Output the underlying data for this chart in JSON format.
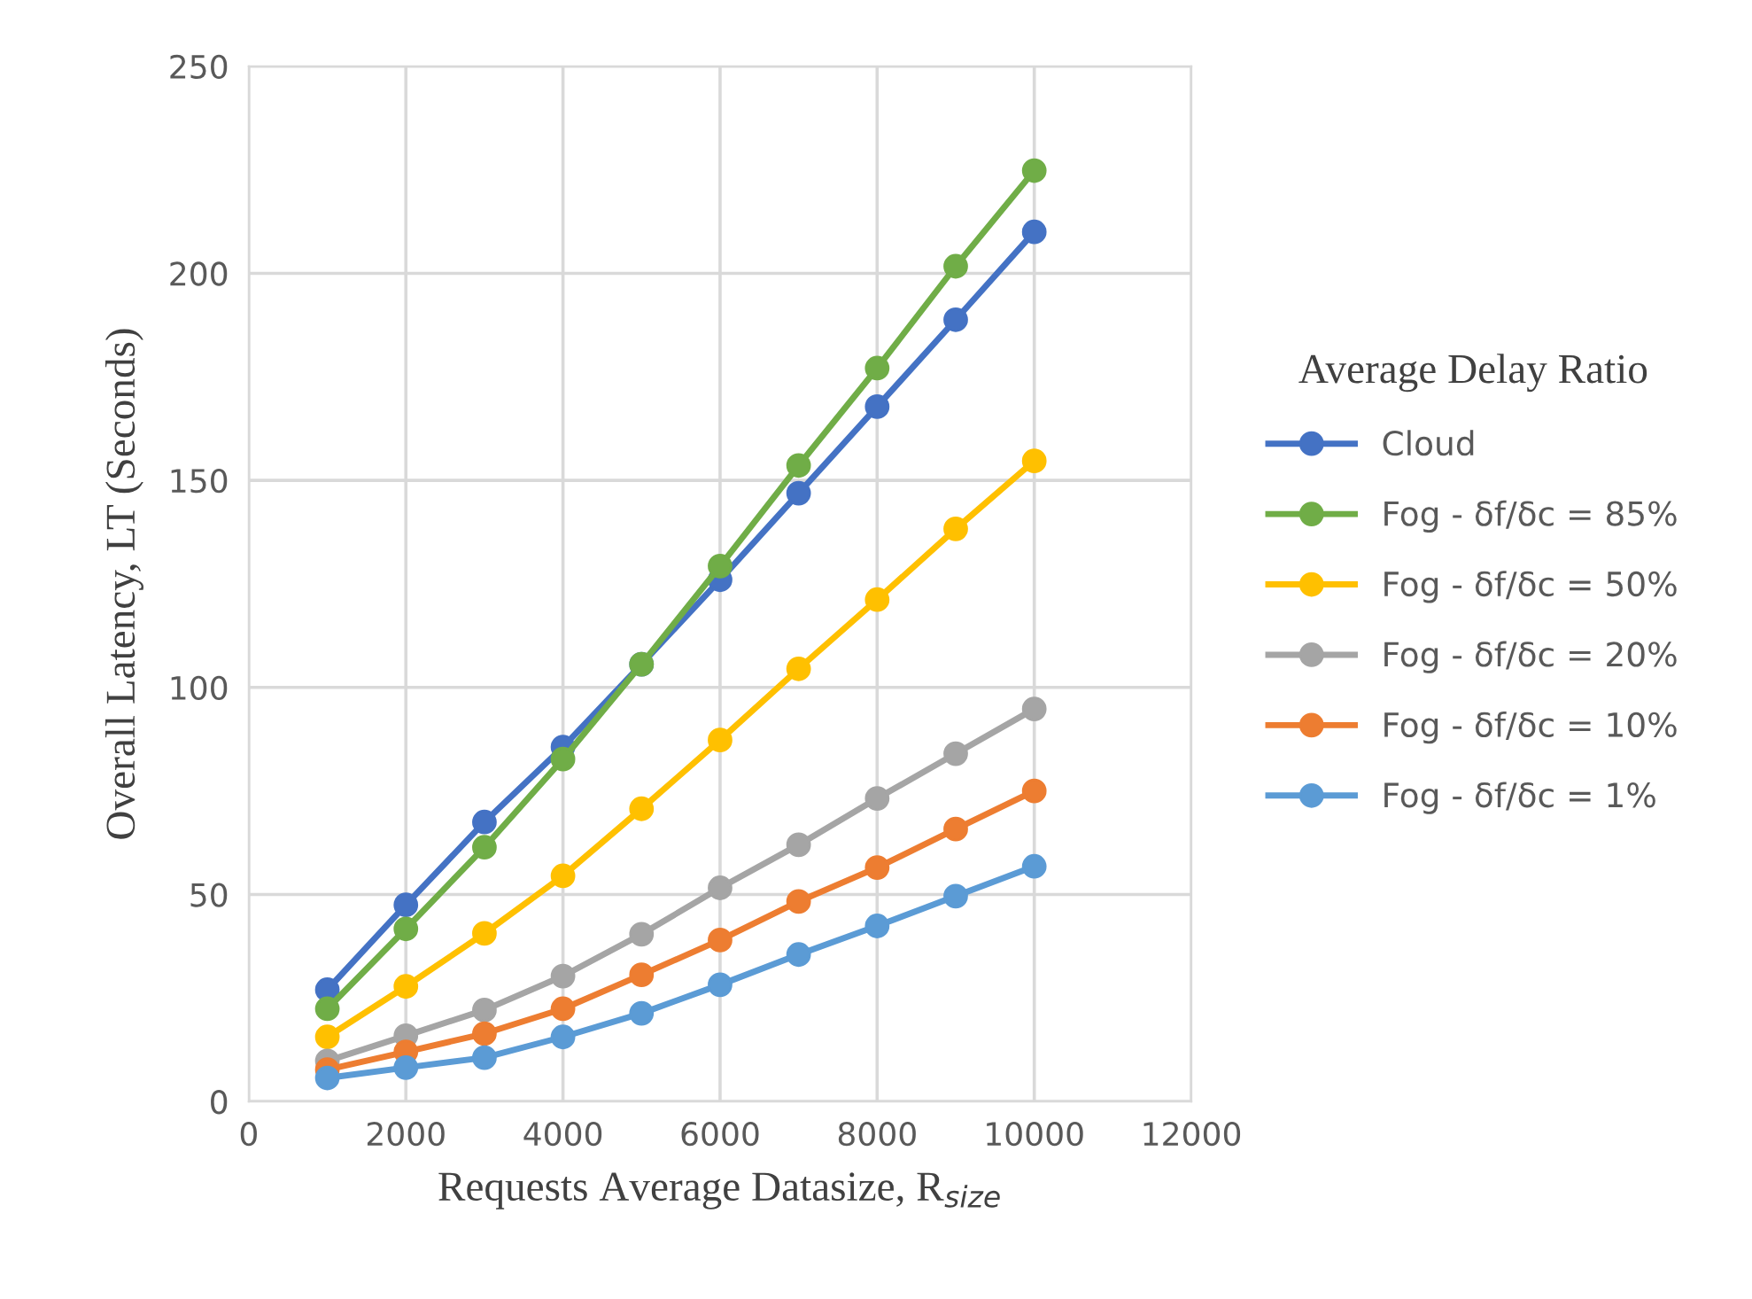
{
  "chart_data": {
    "type": "line",
    "xlabel": "Requests Average Datasize, R$_{size}$",
    "ylabel": "Overall Latency, LT (Seconds)",
    "legend_title": "Average Delay Ratio",
    "x": [
      1000,
      2000,
      3000,
      4000,
      5000,
      6000,
      7000,
      8000,
      9000,
      10000
    ],
    "series": [
      {
        "name": "Cloud",
        "color": "#4472c4",
        "values": [
          27,
          47.5,
          67.5,
          85.6,
          105.6,
          126,
          146.9,
          167.8,
          188.8,
          210
        ]
      },
      {
        "name": "Fog - δf/δc = 85%",
        "color": "#70ad47",
        "values": [
          22.4,
          41.7,
          61.4,
          82.7,
          105.6,
          129.3,
          153.6,
          177.1,
          201.7,
          224.8
        ]
      },
      {
        "name": "Fog - δf/δc = 50%",
        "color": "#ffc000",
        "values": [
          15.6,
          27.8,
          40.6,
          54.5,
          70.7,
          87.3,
          104.5,
          121.2,
          138.3,
          154.7
        ]
      },
      {
        "name": "Fog - δf/δc = 20%",
        "color": "#a5a5a5",
        "values": [
          9.8,
          15.9,
          22.1,
          30.3,
          40.4,
          51.6,
          62,
          73.2,
          84,
          94.8
        ]
      },
      {
        "name": "Fog - δf/δc = 10%",
        "color": "#ed7d31",
        "values": [
          7.7,
          12,
          16.4,
          22.4,
          30.6,
          39,
          48.3,
          56.5,
          65.8,
          75
        ]
      },
      {
        "name": "Fog - δf/δc = 1%",
        "color": "#5b9bd5",
        "values": [
          5.7,
          8.2,
          10.6,
          15.6,
          21.3,
          28.2,
          35.5,
          42.4,
          49.6,
          56.8
        ]
      }
    ],
    "xlim": [
      0,
      12000
    ],
    "xticks": [
      0,
      2000,
      4000,
      6000,
      8000,
      10000,
      12000
    ],
    "ylim": [
      0,
      250
    ],
    "yticks": [
      0,
      50,
      100,
      150,
      200,
      250
    ],
    "grid": true,
    "legend": "right",
    "marker": "circle",
    "line_style": "solid"
  }
}
